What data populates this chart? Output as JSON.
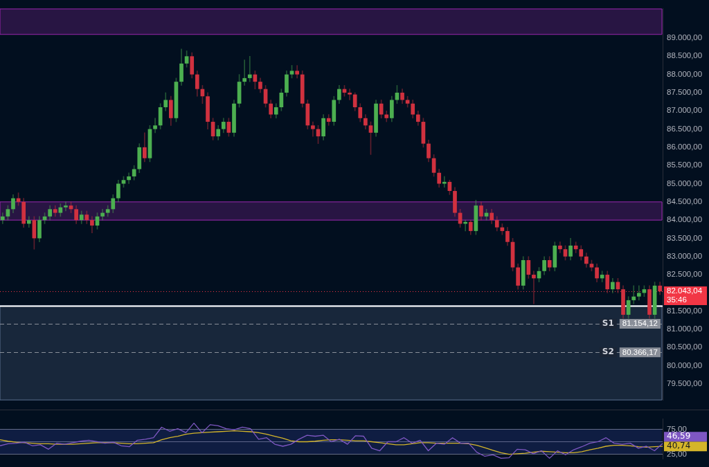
{
  "chart_data": [
    {
      "type": "candlestick",
      "categories": [
        null,
        null,
        null,
        null,
        null,
        null,
        null,
        null,
        null,
        null,
        null,
        null,
        null,
        null,
        null,
        null,
        null,
        null,
        null,
        null,
        null,
        null,
        null,
        null,
        null,
        null,
        null,
        null,
        null,
        null,
        null,
        null,
        null,
        null,
        null,
        null,
        null,
        null,
        null,
        null,
        null,
        null,
        null,
        null,
        null,
        null,
        null,
        null,
        null,
        null,
        null,
        null,
        null,
        null,
        null,
        null,
        null,
        null,
        null,
        null,
        null,
        null,
        null,
        null,
        null,
        null,
        null,
        null,
        null,
        null,
        null,
        null,
        null,
        null,
        null,
        null,
        null,
        null,
        null,
        null,
        null,
        null,
        null,
        null,
        null,
        null,
        null,
        null,
        null,
        null,
        null,
        null,
        null,
        null,
        null,
        null,
        null,
        null,
        null,
        null,
        null,
        null,
        null,
        null,
        null,
        null,
        null,
        null,
        null,
        null,
        null,
        null,
        null,
        null,
        null,
        null,
        null,
        null,
        null,
        null,
        null,
        null,
        null,
        null,
        null,
        null
      ],
      "ohlc": [
        [
          84000,
          84200,
          83900,
          84100
        ],
        [
          84100,
          84400,
          84000,
          84300
        ],
        [
          84300,
          84700,
          84200,
          84600
        ],
        [
          84600,
          84750,
          84400,
          84500
        ],
        [
          84500,
          84600,
          83800,
          83900
        ],
        [
          83900,
          84100,
          83800,
          84000
        ],
        [
          84000,
          84100,
          83200,
          83500
        ],
        [
          83500,
          84100,
          83400,
          84000
        ],
        [
          84000,
          84200,
          83900,
          84100
        ],
        [
          84100,
          84400,
          84000,
          84300
        ],
        [
          84300,
          84400,
          84100,
          84200
        ],
        [
          84200,
          84450,
          84100,
          84350
        ],
        [
          84350,
          84500,
          84250,
          84400
        ],
        [
          84400,
          84500,
          84200,
          84300
        ],
        [
          84300,
          84400,
          83900,
          84000
        ],
        [
          84000,
          84250,
          83900,
          84150
        ],
        [
          84150,
          84250,
          83900,
          84000
        ],
        [
          84000,
          84100,
          83650,
          83850
        ],
        [
          83850,
          84200,
          83750,
          84100
        ],
        [
          84100,
          84300,
          84000,
          84200
        ],
        [
          84200,
          84400,
          84100,
          84300
        ],
        [
          84300,
          84700,
          84200,
          84600
        ],
        [
          84600,
          85100,
          84500,
          85000
        ],
        [
          85000,
          85200,
          84900,
          85100
        ],
        [
          85100,
          85300,
          85000,
          85200
        ],
        [
          85200,
          85500,
          85100,
          85400
        ],
        [
          85400,
          86100,
          85300,
          86000
        ],
        [
          86000,
          86400,
          85600,
          85700
        ],
        [
          85700,
          86600,
          85600,
          86500
        ],
        [
          86500,
          86800,
          86400,
          86600
        ],
        [
          86600,
          87200,
          86500,
          87100
        ],
        [
          87100,
          87500,
          87000,
          87300
        ],
        [
          87300,
          87400,
          86600,
          86800
        ],
        [
          86800,
          87900,
          86700,
          87800
        ],
        [
          87800,
          88700,
          87700,
          88300
        ],
        [
          88300,
          88650,
          88200,
          88500
        ],
        [
          88500,
          88600,
          87900,
          88000
        ],
        [
          88000,
          88100,
          87400,
          87600
        ],
        [
          87600,
          87700,
          87200,
          87400
        ],
        [
          87400,
          87500,
          86500,
          86700
        ],
        [
          86700,
          86800,
          86200,
          86300
        ],
        [
          86300,
          86600,
          86200,
          86500
        ],
        [
          86500,
          86800,
          86400,
          86700
        ],
        [
          86700,
          86800,
          86300,
          86400
        ],
        [
          86400,
          87300,
          86300,
          87200
        ],
        [
          87200,
          88000,
          87100,
          87800
        ],
        [
          87800,
          88400,
          87700,
          87900
        ],
        [
          87900,
          88500,
          87800,
          88000
        ],
        [
          88000,
          88100,
          87600,
          87800
        ],
        [
          87800,
          87900,
          87500,
          87600
        ],
        [
          87600,
          87700,
          87100,
          87200
        ],
        [
          87200,
          87300,
          86800,
          86900
        ],
        [
          86900,
          87200,
          86800,
          87100
        ],
        [
          87100,
          87600,
          87000,
          87500
        ],
        [
          87500,
          88100,
          87400,
          88000
        ],
        [
          88000,
          88250,
          87900,
          88100
        ],
        [
          88100,
          88250,
          87900,
          88000
        ],
        [
          88000,
          88100,
          87100,
          87200
        ],
        [
          87200,
          87300,
          86500,
          86600
        ],
        [
          86600,
          86700,
          86300,
          86500
        ],
        [
          86500,
          86600,
          86100,
          86300
        ],
        [
          86300,
          86900,
          86200,
          86800
        ],
        [
          86800,
          86900,
          86600,
          86700
        ],
        [
          86700,
          87400,
          86600,
          87300
        ],
        [
          87300,
          87700,
          87200,
          87600
        ],
        [
          87600,
          87700,
          87400,
          87500
        ],
        [
          87500,
          87600,
          87300,
          87450
        ],
        [
          87450,
          87500,
          87000,
          87100
        ],
        [
          87100,
          87200,
          86700,
          86800
        ],
        [
          86800,
          86900,
          86500,
          86600
        ],
        [
          86600,
          86700,
          85800,
          86400
        ],
        [
          86400,
          87300,
          86300,
          87200
        ],
        [
          87200,
          87300,
          86800,
          86900
        ],
        [
          86900,
          87000,
          86700,
          86800
        ],
        [
          86800,
          87400,
          86700,
          87300
        ],
        [
          87300,
          87700,
          87200,
          87500
        ],
        [
          87500,
          87600,
          87200,
          87300
        ],
        [
          87300,
          87400,
          87100,
          87200
        ],
        [
          87200,
          87300,
          86800,
          86900
        ],
        [
          86900,
          87000,
          86600,
          86700
        ],
        [
          86700,
          86800,
          86000,
          86100
        ],
        [
          86100,
          86200,
          85600,
          85700
        ],
        [
          85700,
          85800,
          85200,
          85300
        ],
        [
          85300,
          85400,
          84900,
          85000
        ],
        [
          85000,
          85200,
          84900,
          85050
        ],
        [
          85050,
          85100,
          84700,
          84800
        ],
        [
          84800,
          84900,
          84100,
          84200
        ],
        [
          84200,
          84300,
          83800,
          83900
        ],
        [
          83900,
          84000,
          83700,
          83950
        ],
        [
          83950,
          84000,
          83600,
          83700
        ],
        [
          83700,
          84550,
          83600,
          84400
        ],
        [
          84400,
          84500,
          84000,
          84100
        ],
        [
          84100,
          84300,
          84000,
          84200
        ],
        [
          84200,
          84300,
          83900,
          84000
        ],
        [
          84000,
          84100,
          83700,
          83800
        ],
        [
          83800,
          83900,
          83600,
          83700
        ],
        [
          83700,
          83800,
          83300,
          83400
        ],
        [
          83400,
          83500,
          82600,
          82700
        ],
        [
          82700,
          82800,
          82100,
          82200
        ],
        [
          82200,
          83000,
          82100,
          82900
        ],
        [
          82900,
          83000,
          82400,
          82500
        ],
        [
          82500,
          82600,
          81700,
          82400
        ],
        [
          82400,
          82700,
          82300,
          82600
        ],
        [
          82600,
          83000,
          82500,
          82900
        ],
        [
          82900,
          83000,
          82600,
          82700
        ],
        [
          82700,
          83400,
          82600,
          83300
        ],
        [
          83300,
          83400,
          83100,
          83200
        ],
        [
          83200,
          83300,
          82900,
          83000
        ],
        [
          83000,
          83500,
          82900,
          83300
        ],
        [
          83300,
          83400,
          83100,
          83200
        ],
        [
          83200,
          83300,
          82900,
          83000
        ],
        [
          83000,
          83100,
          82700,
          82800
        ],
        [
          82800,
          82900,
          82600,
          82700
        ],
        [
          82700,
          82800,
          82300,
          82400
        ],
        [
          82400,
          82600,
          82300,
          82500
        ],
        [
          82500,
          82600,
          82000,
          82100
        ],
        [
          82100,
          82400,
          82000,
          82300
        ],
        [
          82300,
          82400,
          82000,
          82100
        ],
        [
          82100,
          82200,
          81300,
          81400
        ],
        [
          81400,
          81900,
          81300,
          81800
        ],
        [
          81800,
          82200,
          81700,
          81900
        ],
        [
          81900,
          82200,
          81800,
          82000
        ],
        [
          82000,
          82200,
          81900,
          82100
        ],
        [
          82100,
          82200,
          81300,
          81400
        ],
        [
          81400,
          82300,
          81300,
          82200
        ],
        [
          82200,
          82300,
          81950,
          82043.04
        ]
      ],
      "colors": [
        "#4caf50",
        "#4caf50",
        "#4caf50",
        "#d0313f",
        "#d0313f",
        "#4caf50",
        "#d0313f",
        "#4caf50",
        "#4caf50",
        "#4caf50",
        "#d0313f",
        "#4caf50",
        "#4caf50",
        "#d0313f",
        "#d0313f",
        "#4caf50",
        "#d0313f",
        "#d0313f",
        "#4caf50",
        "#4caf50",
        "#4caf50",
        "#4caf50",
        "#4caf50",
        "#4caf50",
        "#4caf50",
        "#4caf50",
        "#4caf50",
        "#d0313f",
        "#4caf50",
        "#4caf50",
        "#4caf50",
        "#4caf50",
        "#d0313f",
        "#4caf50",
        "#4caf50",
        "#4caf50",
        "#d0313f",
        "#d0313f",
        "#d0313f",
        "#d0313f",
        "#d0313f",
        "#4caf50",
        "#4caf50",
        "#d0313f",
        "#4caf50",
        "#4caf50",
        "#4caf50",
        "#4caf50",
        "#d0313f",
        "#d0313f",
        "#d0313f",
        "#d0313f",
        "#4caf50",
        "#4caf50",
        "#4caf50",
        "#4caf50",
        "#d0313f",
        "#d0313f",
        "#d0313f",
        "#d0313f",
        "#d0313f",
        "#4caf50",
        "#d0313f",
        "#4caf50",
        "#4caf50",
        "#d0313f",
        "#d0313f",
        "#d0313f",
        "#d0313f",
        "#d0313f",
        "#d0313f",
        "#4caf50",
        "#d0313f",
        "#d0313f",
        "#4caf50",
        "#4caf50",
        "#d0313f",
        "#d0313f",
        "#d0313f",
        "#d0313f",
        "#d0313f",
        "#d0313f",
        "#d0313f",
        "#d0313f",
        "#4caf50",
        "#d0313f",
        "#d0313f",
        "#d0313f",
        "#4caf50",
        "#d0313f",
        "#4caf50",
        "#d0313f",
        "#4caf50",
        "#d0313f",
        "#d0313f",
        "#d0313f",
        "#d0313f",
        "#d0313f",
        "#d0313f",
        "#4caf50",
        "#d0313f",
        "#d0313f",
        "#4caf50",
        "#4caf50",
        "#d0313f",
        "#4caf50",
        "#d0313f",
        "#d0313f",
        "#4caf50",
        "#d0313f",
        "#d0313f",
        "#d0313f",
        "#d0313f",
        "#d0313f",
        "#4caf50",
        "#d0313f",
        "#4caf50",
        "#d0313f",
        "#d0313f",
        "#4caf50",
        "#4caf50",
        "#4caf50",
        "#4caf50",
        "#d0313f",
        "#4caf50",
        "#d0313f"
      ],
      "ylim": [
        79060,
        89800
      ],
      "yticks": [
        {
          "value": 79500,
          "label": "79.500,00"
        },
        {
          "value": 80000,
          "label": "80.000,00"
        },
        {
          "value": 80500,
          "label": "80.500,00"
        },
        {
          "value": 81000,
          "label": "81.000,00"
        },
        {
          "value": 81500,
          "label": "81.500,00"
        },
        {
          "value": 82500,
          "label": "82.500,00"
        },
        {
          "value": 83000,
          "label": "83.000,00"
        },
        {
          "value": 83500,
          "label": "83.500,00"
        },
        {
          "value": 84000,
          "label": "84.000,00"
        },
        {
          "value": 84500,
          "label": "84.500,00"
        },
        {
          "value": 85000,
          "label": "85.000,00"
        },
        {
          "value": 85500,
          "label": "85.500,00"
        },
        {
          "value": 86000,
          "label": "86.000,00"
        },
        {
          "value": 86500,
          "label": "86.500,00"
        },
        {
          "value": 87000,
          "label": "87.000,00"
        },
        {
          "value": 87500,
          "label": "87.500,00"
        },
        {
          "value": 88000,
          "label": "88.000,00"
        },
        {
          "value": 88500,
          "label": "88.500,00"
        },
        {
          "value": 89000,
          "label": "89.000,00"
        }
      ],
      "bands": [
        {
          "axis": "y",
          "from": 84000,
          "to": 84500,
          "color": "#9c27b0"
        },
        {
          "axis": "y",
          "from": 89100,
          "to": 89800,
          "color": "#9c27b0"
        },
        {
          "axis": "y",
          "from": 79060,
          "to": 81650,
          "color": "#5c7090"
        }
      ],
      "ref_lines": [
        {
          "axis": "y",
          "value": 81650,
          "color": "#ffffff",
          "line_style": "solid"
        },
        {
          "axis": "y",
          "value": 82043.04,
          "label": "82.043,04",
          "color": "#f23645",
          "line_style": "dotted"
        },
        {
          "axis": "y",
          "value": 81154.12,
          "label": "S1",
          "color": "#8a8f99",
          "line_style": "dashed"
        },
        {
          "axis": "y",
          "value": 80366.17,
          "label": "S2",
          "color": "#8a8f99",
          "line_style": "dashed"
        }
      ],
      "annotations": [
        "35:46",
        "81.154,12",
        "80.366,17"
      ]
    },
    {
      "type": "line",
      "categories": [
        null,
        null,
        null,
        null,
        null,
        null,
        null,
        null,
        null,
        null,
        null,
        null,
        null,
        null,
        null,
        null,
        null,
        null,
        null,
        null,
        null,
        null,
        null,
        null,
        null,
        null,
        null,
        null,
        null,
        null,
        null,
        null,
        null,
        null,
        null,
        null,
        null,
        null,
        null,
        null,
        null,
        null,
        null,
        null,
        null,
        null,
        null,
        null,
        null,
        null,
        null,
        null,
        null,
        null,
        null,
        null,
        null,
        null,
        null,
        null,
        null,
        null,
        null,
        null,
        null,
        null,
        null,
        null,
        null,
        null,
        null,
        null,
        null,
        null,
        null,
        null,
        null,
        null,
        null,
        null,
        null,
        null,
        null
      ],
      "series": [
        {
          "color": "#7e57c2",
          "values": [
            42,
            46,
            47,
            49,
            42,
            44,
            35,
            47,
            45,
            48,
            51,
            53,
            50,
            47,
            49,
            42,
            40,
            53,
            55,
            58,
            79,
            71,
            76,
            68,
            87,
            68,
            84,
            82,
            76,
            74,
            79,
            76,
            55,
            58,
            45,
            41,
            45,
            55,
            63,
            61,
            63,
            50,
            55,
            45,
            62,
            61,
            37,
            32,
            50,
            50,
            58,
            47,
            53,
            32,
            47,
            45,
            58,
            47,
            47,
            29,
            21,
            24,
            17,
            18,
            35,
            34,
            26,
            32,
            17,
            32,
            24,
            34,
            40,
            47,
            50,
            58,
            47,
            45,
            47,
            37,
            41,
            32,
            46.59
          ]
        },
        {
          "color": "#d4b52a",
          "values": [
            54,
            51,
            49,
            48,
            47,
            46,
            46,
            45,
            45,
            45,
            46,
            47,
            48,
            48,
            48,
            47,
            46,
            46,
            47,
            48,
            54,
            58,
            61,
            65,
            67,
            68,
            69,
            70,
            71,
            72,
            71,
            70,
            68,
            65,
            61,
            57,
            52,
            50,
            50,
            51,
            53,
            54,
            54,
            53,
            52,
            52,
            50,
            48,
            46,
            44,
            44,
            46,
            48,
            48,
            47,
            47,
            47,
            47,
            46,
            43,
            38,
            33,
            28,
            25,
            26,
            27,
            29,
            31,
            30,
            29,
            28,
            28,
            30,
            34,
            37,
            41,
            43,
            43,
            42,
            40,
            39,
            40,
            40.74
          ]
        }
      ],
      "ylim": [
        16,
        95
      ],
      "yticks": [
        {
          "value": 25,
          "label": "25,00"
        },
        {
          "value": 50,
          "label": null
        },
        {
          "value": 75,
          "label": "75,00"
        }
      ],
      "grid": "y",
      "bands": [
        {
          "axis": "y",
          "from": 25,
          "to": 75,
          "color": "#3949ab"
        }
      ],
      "annotations": [
        "46,59",
        "40,74"
      ]
    }
  ]
}
